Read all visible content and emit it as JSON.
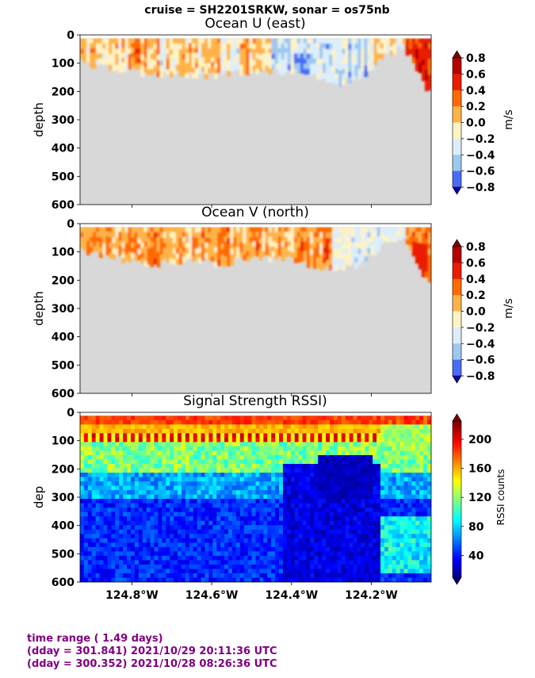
{
  "suptitle": "cruise = SH2201SRKW,  sonar = os75nb",
  "footer": {
    "line1": "time range ( 1.49 days)",
    "line2": "(dday = 301.841) 2021/10/29 20:11:36 UTC",
    "line3": "(dday = 300.352) 2021/10/28 08:26:36 UTC"
  },
  "colors": {
    "mask": "#d8d8d8",
    "footer_text": "#800080"
  },
  "chart_data": [
    {
      "type": "heatmap",
      "title": "Ocean U (east)",
      "ylabel": "depth",
      "xlabel": "",
      "ylim": [
        600,
        0
      ],
      "yticks": [
        "0",
        "100",
        "200",
        "300",
        "400",
        "500",
        "600"
      ],
      "xlim": [
        -124.93,
        -124.05
      ],
      "xticks": [],
      "colorbar": {
        "label": "m/s",
        "ticks": [
          "0.8",
          "0.6",
          "0.4",
          "0.2",
          "0.0",
          "−0.2",
          "−0.4",
          "−0.6",
          "−0.8"
        ],
        "levels": [
          0.8,
          0.6,
          0.4,
          0.2,
          0.0,
          -0.2,
          -0.4,
          -0.6,
          -0.8
        ],
        "colors": [
          "#b40000",
          "#ea1b00",
          "#ff6a00",
          "#ffb347",
          "#fff3c4",
          "#dceefa",
          "#9ec8f0",
          "#4a6cf5",
          "#1a00e6"
        ],
        "extend": "both"
      },
      "bottom_depth_profile": {
        "x": [
          -124.93,
          -124.86,
          -124.82,
          -124.76,
          -124.7,
          -124.64,
          -124.58,
          -124.52,
          -124.46,
          -124.4,
          -124.34,
          -124.3,
          -124.24,
          -124.2,
          -124.16,
          -124.12,
          -124.08,
          -124.06
        ],
        "depth": [
          100,
          110,
          120,
          140,
          135,
          140,
          145,
          130,
          125,
          130,
          150,
          175,
          160,
          120,
          70,
          40,
          130,
          190
        ]
      },
      "features": [
        {
          "x": [
            -124.09,
            -124.06
          ],
          "depth": [
            30,
            170
          ],
          "value": 0.85
        },
        {
          "x": [
            -124.8,
            -124.78
          ],
          "depth": [
            10,
            90
          ],
          "value": 0.7
        },
        {
          "x": [
            -124.4,
            -124.36
          ],
          "depth": [
            60,
            180
          ],
          "value": -0.35
        }
      ]
    },
    {
      "type": "heatmap",
      "title": "Ocean V (north)",
      "ylabel": "depth",
      "xlabel": "",
      "ylim": [
        600,
        0
      ],
      "yticks": [
        "0",
        "100",
        "200",
        "300",
        "400",
        "500",
        "600"
      ],
      "xlim": [
        -124.93,
        -124.05
      ],
      "xticks": [],
      "colorbar": {
        "label": "m/s",
        "ticks": [
          "0.8",
          "0.6",
          "0.4",
          "0.2",
          "0.0",
          "−0.2",
          "−0.4",
          "−0.6",
          "−0.8"
        ],
        "levels": [
          0.8,
          0.6,
          0.4,
          0.2,
          0.0,
          -0.2,
          -0.4,
          -0.6,
          -0.8
        ],
        "colors": [
          "#b40000",
          "#ea1b00",
          "#ff6a00",
          "#ffb347",
          "#fff3c4",
          "#dceefa",
          "#9ec8f0",
          "#4a6cf5",
          "#1a00e6"
        ],
        "extend": "both"
      },
      "bottom_depth_profile": {
        "x": [
          -124.93,
          -124.86,
          -124.82,
          -124.76,
          -124.7,
          -124.64,
          -124.58,
          -124.52,
          -124.46,
          -124.4,
          -124.34,
          -124.3,
          -124.24,
          -124.2,
          -124.16,
          -124.12,
          -124.08,
          -124.06
        ],
        "depth": [
          100,
          110,
          130,
          145,
          130,
          135,
          140,
          125,
          120,
          125,
          150,
          165,
          150,
          110,
          60,
          40,
          150,
          200
        ]
      },
      "features": [
        {
          "x": [
            -124.1,
            -124.06
          ],
          "depth": [
            60,
            170
          ],
          "value": 0.75
        },
        {
          "x": [
            -124.93,
            -124.88
          ],
          "depth": [
            0,
            100
          ],
          "value": 0.45
        }
      ]
    },
    {
      "type": "heatmap",
      "title": "Signal Strength RSSI)",
      "ylabel": "dep",
      "xlabel": "",
      "ylim": [
        600,
        0
      ],
      "yticks": [
        "0",
        "100",
        "200",
        "300",
        "400",
        "500",
        "600"
      ],
      "xlim": [
        -124.93,
        -124.05
      ],
      "xticks": [
        "124.8°W",
        "124.6°W",
        "124.4°W",
        "124.2°W"
      ],
      "xtick_values": [
        -124.8,
        -124.6,
        -124.4,
        -124.2
      ],
      "colorbar": {
        "label": "RSSI counts",
        "ticks": [
          "200",
          "160",
          "120",
          "80",
          "40"
        ],
        "range": [
          10,
          225
        ],
        "colormap": "jet",
        "extend": "both"
      }
    }
  ]
}
